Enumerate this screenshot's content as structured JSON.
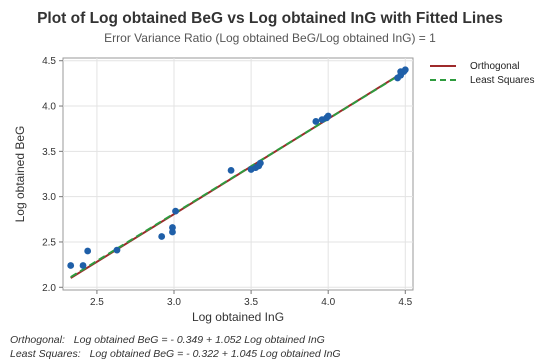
{
  "chart_data": {
    "type": "scatter",
    "title": "Plot of Log obtained BeG vs Log obtained InG with Fitted Lines",
    "subtitle": "Error Variance Ratio (Log obtained BeG/Log obtained InG) = 1",
    "xlabel": "Log obtained InG",
    "ylabel": "Log obtained BeG",
    "xlim": [
      2.28,
      4.55
    ],
    "ylim": [
      1.97,
      4.53
    ],
    "x_ticks": [
      "2.5",
      "3.0",
      "3.5",
      "4.0",
      "4.5"
    ],
    "y_ticks": [
      "2.0",
      "2.5",
      "3.0",
      "3.5",
      "4.0",
      "4.5"
    ],
    "grid": true,
    "legend_position": "top-right",
    "points": [
      {
        "x": 2.33,
        "y": 2.24
      },
      {
        "x": 2.41,
        "y": 2.24
      },
      {
        "x": 2.44,
        "y": 2.4
      },
      {
        "x": 2.63,
        "y": 2.41
      },
      {
        "x": 2.92,
        "y": 2.56
      },
      {
        "x": 2.99,
        "y": 2.61
      },
      {
        "x": 2.99,
        "y": 2.66
      },
      {
        "x": 3.01,
        "y": 2.84
      },
      {
        "x": 3.37,
        "y": 3.29
      },
      {
        "x": 3.5,
        "y": 3.3
      },
      {
        "x": 3.53,
        "y": 3.32
      },
      {
        "x": 3.55,
        "y": 3.34
      },
      {
        "x": 3.56,
        "y": 3.37
      },
      {
        "x": 3.92,
        "y": 3.83
      },
      {
        "x": 3.96,
        "y": 3.85
      },
      {
        "x": 3.99,
        "y": 3.87
      },
      {
        "x": 4.0,
        "y": 3.89
      },
      {
        "x": 4.45,
        "y": 4.31
      },
      {
        "x": 4.47,
        "y": 4.34
      },
      {
        "x": 4.47,
        "y": 4.38
      },
      {
        "x": 4.49,
        "y": 4.38
      },
      {
        "x": 4.5,
        "y": 4.4
      }
    ],
    "series": [
      {
        "name": "Orthogonal",
        "intercept": -0.349,
        "slope": 1.052,
        "x_range": [
          2.33,
          4.5
        ],
        "color": "#9e2a2b",
        "dash": "solid"
      },
      {
        "name": "Least Squares",
        "intercept": -0.322,
        "slope": 1.045,
        "x_range": [
          2.33,
          4.5
        ],
        "color": "#2e9b3e",
        "dash": "dashed"
      }
    ],
    "point_color": "#1f5fa8",
    "equations": [
      {
        "label": "Orthogonal:",
        "text": "Log obtained BeG = - 0.349 + 1.052 Log obtained InG"
      },
      {
        "label": "Least Squares:",
        "text": "Log obtained BeG = - 0.322 + 1.045 Log obtained InG"
      }
    ]
  }
}
